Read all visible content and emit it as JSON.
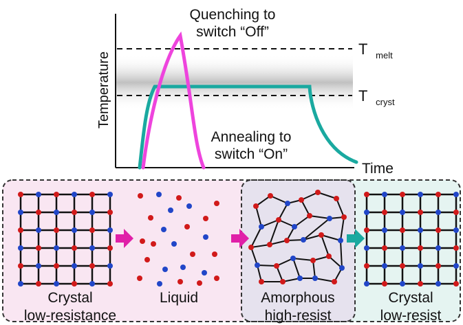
{
  "plot": {
    "annotation_quench_line1": "Quenching to",
    "annotation_quench_line2": "switch “Off”",
    "annotation_anneal_line1": "Annealing to",
    "annotation_anneal_line2": "switch “On”",
    "y_axis_label": "Temperature",
    "x_axis_label": "Time",
    "t_melt_main": "T",
    "t_melt_sub": "melt",
    "t_cryst_main": "T",
    "t_cryst_sub": "cryst",
    "colors": {
      "quench": "#ee44dd",
      "anneal": "#1aa9a0",
      "band": "#c8c8c8"
    }
  },
  "phases": [
    {
      "label1": "Crystal",
      "label2": "low-resistance",
      "bg": "#f9e6f2"
    },
    {
      "label1": "Liquid",
      "label2": "",
      "bg": "#f9e6f2"
    },
    {
      "label1": "Amorphous",
      "label2": "high-resist",
      "bg": "#e6e2ee"
    },
    {
      "label1": "Crystal",
      "label2": "low-resist",
      "bg": "#e5f4f1"
    }
  ],
  "arrow_colors": [
    "#e020a8",
    "#e020a8",
    "#1aa9a0"
  ],
  "atom_colors": {
    "red": "#d11a1a",
    "blue": "#2146c8"
  }
}
